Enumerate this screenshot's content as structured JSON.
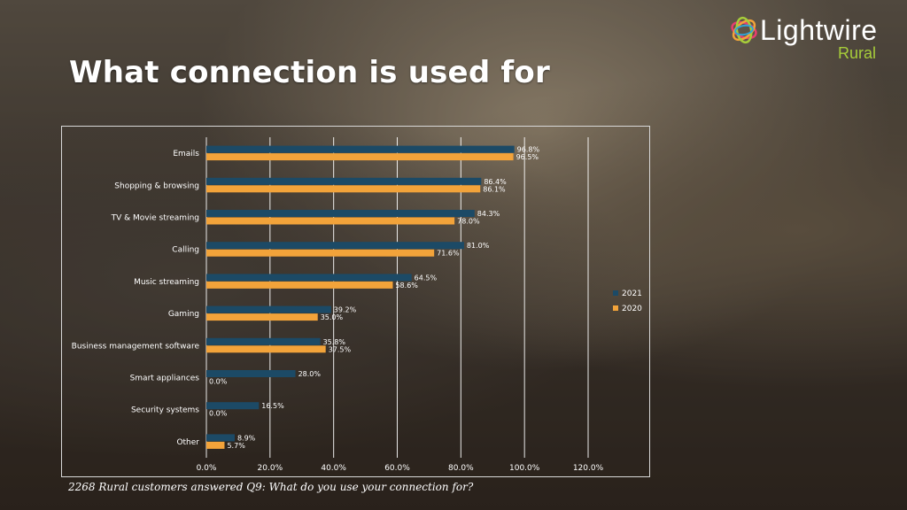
{
  "page": {
    "title": "What connection is used for",
    "caption": "2268 Rural customers answered Q9: What do you use your connection for?"
  },
  "logo": {
    "brand": "Lightwire",
    "sub": "Rural"
  },
  "colors": {
    "series_2021": "#1c4a66",
    "series_2020": "#f2a33a",
    "grid": "#ffffff",
    "text": "#ffffff"
  },
  "chart_data": {
    "type": "bar",
    "orientation": "horizontal",
    "categories": [
      "Emails",
      "Shopping & browsing",
      "TV & Movie streaming",
      "Calling",
      "Music streaming",
      "Gaming",
      "Business management software",
      "Smart appliances",
      "Security systems",
      "Other"
    ],
    "series": [
      {
        "name": "2021",
        "values": [
          96.8,
          86.4,
          84.3,
          81.0,
          64.5,
          39.2,
          35.8,
          28.0,
          16.5,
          8.9
        ]
      },
      {
        "name": "2020",
        "values": [
          96.5,
          86.1,
          78.0,
          71.6,
          58.6,
          35.0,
          37.5,
          0.0,
          0.0,
          5.7
        ]
      }
    ],
    "xlim": [
      0,
      120
    ],
    "xticks": [
      "0.0%",
      "20.0%",
      "40.0%",
      "60.0%",
      "80.0%",
      "100.0%",
      "120.0%"
    ],
    "value_format": "%",
    "grid": true,
    "legend_position": "right"
  }
}
